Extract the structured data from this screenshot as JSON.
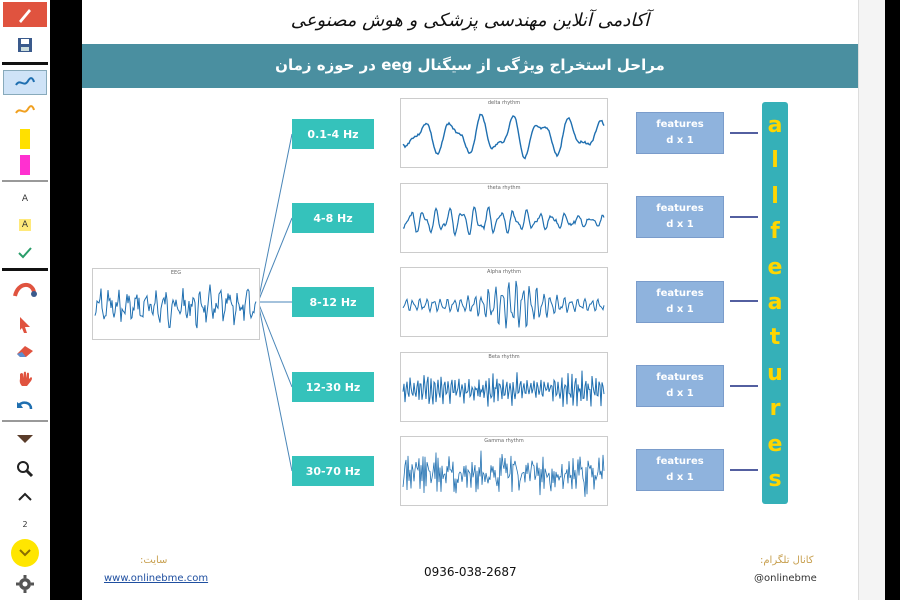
{
  "toolbar": {
    "items": [
      {
        "name": "pen-icon"
      },
      {
        "name": "save-icon"
      },
      {
        "name": "blue-pen-icon"
      },
      {
        "name": "orange-pen-icon"
      },
      {
        "name": "yellow-highlighter-icon"
      },
      {
        "name": "pink-highlighter-icon"
      },
      {
        "name": "text-icon",
        "label": "A"
      },
      {
        "name": "text-highlight-icon",
        "label": "A"
      },
      {
        "name": "check-icon"
      },
      {
        "name": "arc-icon"
      },
      {
        "name": "pointer-icon"
      },
      {
        "name": "eraser-icon"
      },
      {
        "name": "hand-icon"
      },
      {
        "name": "undo-icon"
      },
      {
        "name": "collapse-icon"
      },
      {
        "name": "zoom-icon"
      },
      {
        "name": "chevron-up-icon"
      },
      {
        "name": "page-number",
        "label": "2"
      },
      {
        "name": "chevron-down-icon"
      },
      {
        "name": "settings-icon"
      }
    ]
  },
  "slide": {
    "header": "آکادمی آنلاین مهندسی پزشکی و هوش مصنوعی",
    "banner": "مراحل استخراج ویژگی از سیگنال eeg در حوزه زمان",
    "input_signal_title": "EEG",
    "bands": [
      {
        "label": "0.1-4 Hz",
        "signal_title": "delta rhythm",
        "feature_line1": "features",
        "feature_line2": "d x 1"
      },
      {
        "label": "4-8 Hz",
        "signal_title": "theta rhythm",
        "feature_line1": "features",
        "feature_line2": "d x 1"
      },
      {
        "label": "8-12 Hz",
        "signal_title": "Alpha rhythm",
        "feature_line1": "features",
        "feature_line2": "d x 1"
      },
      {
        "label": "12-30 Hz",
        "signal_title": "Beta rhythm",
        "feature_line1": "features",
        "feature_line2": "d x 1"
      },
      {
        "label": "30-70 Hz",
        "signal_title": "Gamma rhythm",
        "feature_line1": "features",
        "feature_line2": "d x 1"
      }
    ],
    "all_features_letters": [
      "a",
      "l",
      "l",
      "f",
      "e",
      "a",
      "t",
      "u",
      "r",
      "e",
      "s"
    ],
    "footer": {
      "site_label": "سایت:",
      "site_url": "www.onlinebme.com",
      "phone": "0936-038-2687",
      "telegram_label": "کانال تلگرام:",
      "telegram_handle": "@onlinebme"
    },
    "colors": {
      "banner": "#4a8fa0",
      "band_box": "#35c2bb",
      "feature_box": "#8fb3dd",
      "all_features_bg": "#35b0b8",
      "all_features_text": "#ffd600",
      "signal": "#1f6fb0"
    }
  }
}
